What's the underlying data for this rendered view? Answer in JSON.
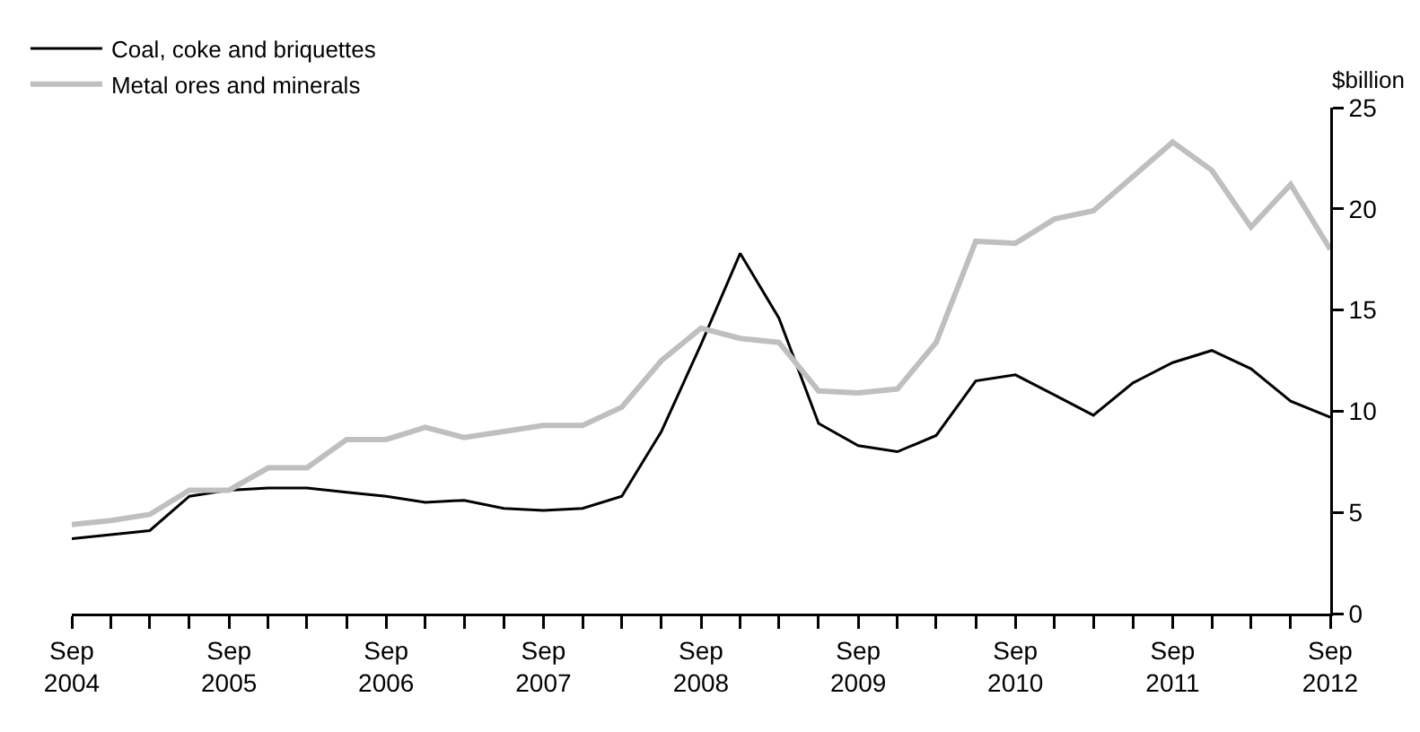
{
  "chart_data": {
    "type": "line",
    "ylabel": "$billion",
    "x": [
      "2004-09",
      "2004-12",
      "2005-03",
      "2005-06",
      "2005-09",
      "2005-12",
      "2006-03",
      "2006-06",
      "2006-09",
      "2006-12",
      "2007-03",
      "2007-06",
      "2007-09",
      "2007-12",
      "2008-03",
      "2008-06",
      "2008-09",
      "2008-12",
      "2009-03",
      "2009-06",
      "2009-09",
      "2009-12",
      "2010-03",
      "2010-06",
      "2010-09",
      "2010-12",
      "2011-03",
      "2011-06",
      "2011-09",
      "2011-12",
      "2012-03",
      "2012-06",
      "2012-09"
    ],
    "series": [
      {
        "name": "Coal, coke and briquettes",
        "color": "#000000",
        "values": [
          3.7,
          3.9,
          4.1,
          5.8,
          6.1,
          6.2,
          6.2,
          6.0,
          5.8,
          5.5,
          5.6,
          5.2,
          5.1,
          5.2,
          5.8,
          9.0,
          13.3,
          17.8,
          14.6,
          9.4,
          8.3,
          8.0,
          8.8,
          11.5,
          11.8,
          10.8,
          9.8,
          11.4,
          12.4,
          13.0,
          12.1,
          10.5,
          9.7
        ]
      },
      {
        "name": "Metal ores and minerals",
        "color": "#bfbfbf",
        "values": [
          4.4,
          4.6,
          4.9,
          6.1,
          6.1,
          7.2,
          7.2,
          8.6,
          8.6,
          9.2,
          8.7,
          9.0,
          9.3,
          9.3,
          10.2,
          12.5,
          14.1,
          13.6,
          13.4,
          11.0,
          10.9,
          11.1,
          13.4,
          18.4,
          18.3,
          19.5,
          19.9,
          21.6,
          23.3,
          21.9,
          19.1,
          21.2,
          18.0
        ]
      }
    ],
    "xlim": [
      "2004-09",
      "2012-09"
    ],
    "xticks": [
      {
        "value": "2004-09",
        "label": "Sep\n2004"
      },
      {
        "value": "2004-12",
        "label": null
      },
      {
        "value": "2005-03",
        "label": null
      },
      {
        "value": "2005-06",
        "label": null
      },
      {
        "value": "2005-09",
        "label": "Sep\n2005"
      },
      {
        "value": "2005-12",
        "label": null
      },
      {
        "value": "2006-03",
        "label": null
      },
      {
        "value": "2006-06",
        "label": null
      },
      {
        "value": "2006-09",
        "label": "Sep\n2006"
      },
      {
        "value": "2006-12",
        "label": null
      },
      {
        "value": "2007-03",
        "label": null
      },
      {
        "value": "2007-06",
        "label": null
      },
      {
        "value": "2007-09",
        "label": "Sep\n2007"
      },
      {
        "value": "2007-12",
        "label": null
      },
      {
        "value": "2008-03",
        "label": null
      },
      {
        "value": "2008-06",
        "label": null
      },
      {
        "value": "2008-09",
        "label": "Sep\n2008"
      },
      {
        "value": "2008-12",
        "label": null
      },
      {
        "value": "2009-03",
        "label": null
      },
      {
        "value": "2009-06",
        "label": null
      },
      {
        "value": "2009-09",
        "label": "Sep\n2009"
      },
      {
        "value": "2009-12",
        "label": null
      },
      {
        "value": "2010-03",
        "label": null
      },
      {
        "value": "2010-06",
        "label": null
      },
      {
        "value": "2010-09",
        "label": "Sep\n2010"
      },
      {
        "value": "2010-12",
        "label": null
      },
      {
        "value": "2011-03",
        "label": null
      },
      {
        "value": "2011-06",
        "label": null
      },
      {
        "value": "2011-09",
        "label": "Sep\n2011"
      },
      {
        "value": "2011-12",
        "label": null
      },
      {
        "value": "2012-03",
        "label": null
      },
      {
        "value": "2012-06",
        "label": null
      },
      {
        "value": "2012-09",
        "label": "Sep\n2012"
      }
    ],
    "ylim": [
      0,
      25
    ],
    "yticks": [
      0,
      5,
      10,
      15,
      20,
      25
    ],
    "grid": false,
    "legend": "top left",
    "marker": "none",
    "line_style": "solid"
  }
}
